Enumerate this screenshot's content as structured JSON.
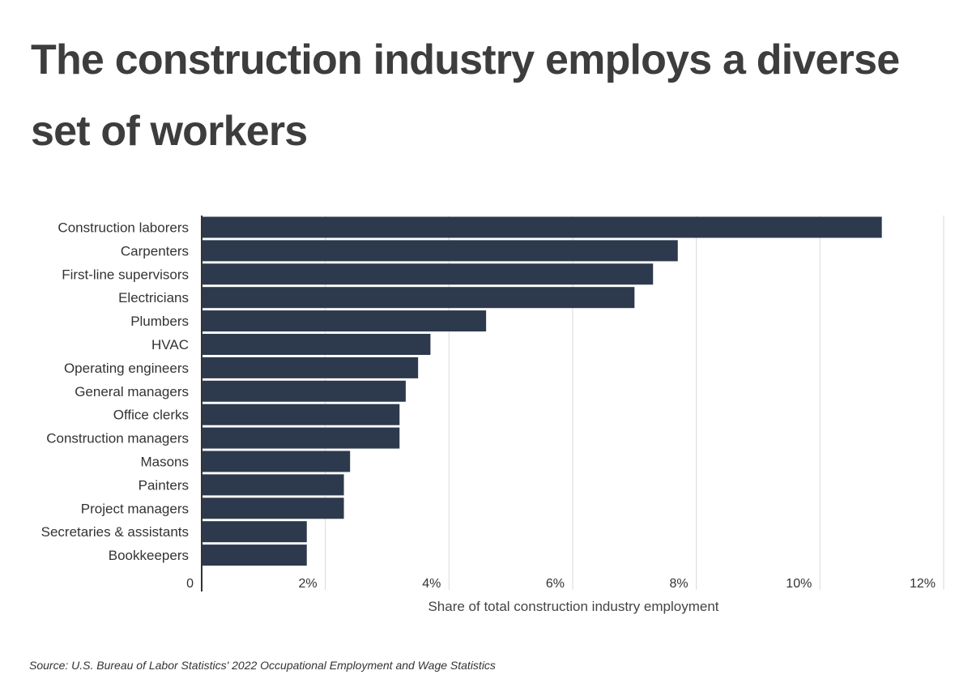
{
  "title": "The construction industry employs a diverse set of workers",
  "source": "Source: U.S. Bureau of Labor Statistics' 2022 Occupational Employment and Wage Statistics",
  "chart_data": {
    "type": "bar",
    "orientation": "horizontal",
    "title": "The construction industry employs a diverse set of workers",
    "xlabel": "Share of total construction industry employment",
    "ylabel": "",
    "xlim": [
      0,
      12
    ],
    "xticks": [
      0,
      2,
      4,
      6,
      8,
      10,
      12
    ],
    "xtick_labels": [
      "0",
      "2%",
      "4%",
      "6%",
      "8%",
      "10%",
      "12%"
    ],
    "grid": true,
    "bar_color": "#2d3a4d",
    "categories": [
      "Construction laborers",
      "Carpenters",
      "First-line supervisors",
      "Electricians",
      "Plumbers",
      "HVAC",
      "Operating engineers",
      "General managers",
      "Office clerks",
      "Construction managers",
      "Masons",
      "Painters",
      "Project managers",
      "Secretaries & assistants",
      "Bookkeepers"
    ],
    "values": [
      11.0,
      7.7,
      7.3,
      7.0,
      4.6,
      3.7,
      3.5,
      3.3,
      3.2,
      3.2,
      2.4,
      2.3,
      2.3,
      1.7,
      1.7
    ]
  }
}
